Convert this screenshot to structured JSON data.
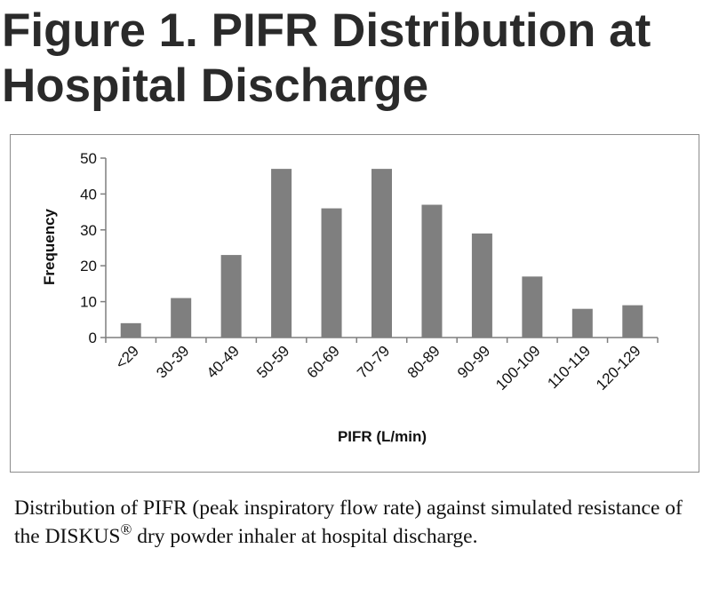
{
  "figure": {
    "title_line1": "Figure 1. PIFR Distribution at",
    "title_line2": "Hospital Discharge",
    "caption_part1": "Distribution of PIFR (peak inspiratory flow rate) against simulated resistance of the DISKUS",
    "caption_mark": "®",
    "caption_part2": " dry powder inhaler at hospital discharge."
  },
  "chart_data": {
    "type": "bar",
    "title": "",
    "xlabel": "PIFR (L/min)",
    "ylabel": "Frequency",
    "categories": [
      "<29",
      "30-39",
      "40-49",
      "50-59",
      "60-69",
      "70-79",
      "80-89",
      "90-99",
      "100-109",
      "110-119",
      "120-129"
    ],
    "values": [
      4,
      11,
      23,
      47,
      36,
      47,
      37,
      29,
      17,
      8,
      9
    ],
    "ylim": [
      0,
      50
    ],
    "yticks": [
      0,
      10,
      20,
      30,
      40,
      50
    ],
    "grid": false,
    "legend": "none",
    "bar_color": "#7f7f7f",
    "axis_color": "#7f7f7f"
  }
}
